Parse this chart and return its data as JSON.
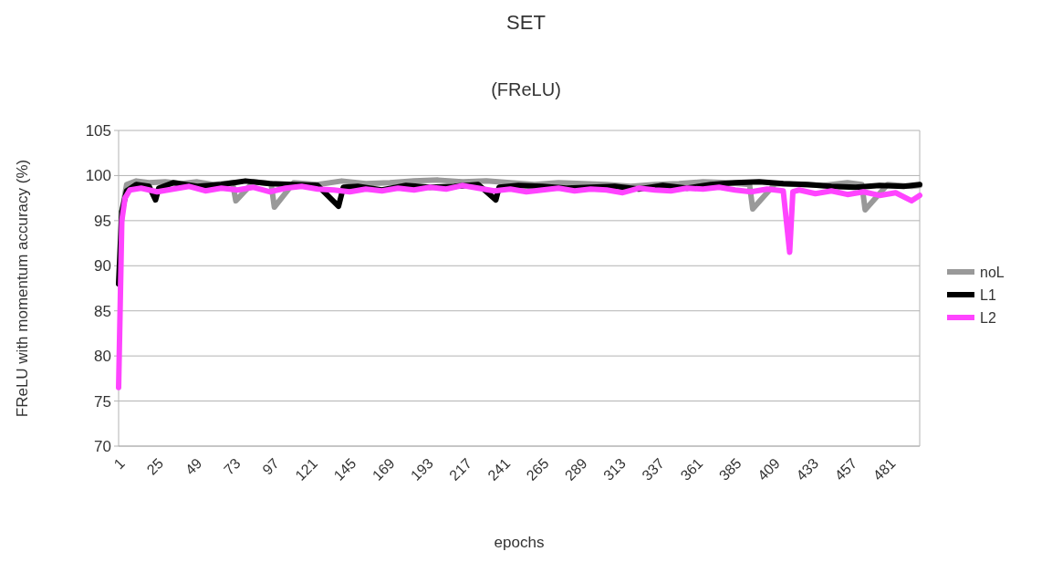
{
  "chart_data": {
    "type": "line",
    "title": "SET",
    "subtitle": "(FReLU)",
    "xlabel": "epochs",
    "ylabel": "FReLU with momentum accuracy (%)",
    "xlim": [
      1,
      500
    ],
    "xticks": [
      1,
      25,
      49,
      73,
      97,
      121,
      145,
      169,
      193,
      217,
      241,
      265,
      289,
      313,
      337,
      361,
      385,
      409,
      433,
      457,
      481
    ],
    "ylim": [
      70,
      105
    ],
    "yticks": [
      70,
      75,
      80,
      85,
      90,
      95,
      100,
      105
    ],
    "grid": "y",
    "legend": "right",
    "line_style": "solid",
    "marker": "none",
    "series": [
      {
        "name": "noL",
        "color": "#999999",
        "x": [
          3,
          6,
          12,
          20,
          30,
          40,
          50,
          60,
          72,
          74,
          85,
          96,
          98,
          110,
          125,
          140,
          155,
          170,
          185,
          200,
          215,
          230,
          245,
          260,
          275,
          290,
          305,
          320,
          335,
          350,
          365,
          380,
          394,
          396,
          410,
          425,
          440,
          455,
          464,
          466,
          480,
          495,
          500
        ],
        "values": [
          96,
          99,
          99.4,
          99.2,
          99.3,
          99.1,
          99.3,
          99,
          99.2,
          97.2,
          99.3,
          99.1,
          96.5,
          99.2,
          99,
          99.4,
          99.1,
          99.2,
          99.4,
          99.5,
          99.3,
          99.4,
          99.2,
          99,
          99.2,
          99.1,
          99,
          98.8,
          99,
          99.1,
          99.3,
          99.2,
          99,
          96.3,
          99.1,
          99,
          98.9,
          99.2,
          99,
          96.2,
          99,
          98.8,
          98.9
        ]
      },
      {
        "name": "L1",
        "color": "#000000",
        "x": [
          1,
          3,
          6,
          12,
          20,
          24,
          26,
          35,
          50,
          65,
          80,
          95,
          110,
          125,
          138,
          141,
          150,
          165,
          180,
          195,
          210,
          225,
          236,
          238,
          250,
          265,
          280,
          295,
          310,
          325,
          340,
          355,
          370,
          385,
          400,
          415,
          430,
          445,
          460,
          475,
          490,
          500
        ],
        "values": [
          88,
          96,
          98.3,
          99,
          98.8,
          97.3,
          98.6,
          99.2,
          98.8,
          99,
          99.4,
          99.1,
          99,
          98.9,
          96.6,
          98.7,
          98.8,
          98.4,
          98.9,
          98.7,
          98.8,
          99,
          97.3,
          98.7,
          98.9,
          98.8,
          98.6,
          98.7,
          98.8,
          98.5,
          98.9,
          98.6,
          99,
          99.2,
          99.3,
          99.1,
          99,
          98.8,
          98.7,
          98.9,
          98.8,
          99
        ]
      },
      {
        "name": "L2",
        "color": "#ff44ff",
        "x": [
          1,
          3,
          5,
          8,
          15,
          25,
          35,
          45,
          55,
          65,
          75,
          85,
          95,
          105,
          115,
          125,
          135,
          145,
          155,
          165,
          175,
          185,
          195,
          205,
          215,
          225,
          235,
          245,
          255,
          265,
          275,
          285,
          295,
          305,
          315,
          325,
          335,
          345,
          355,
          365,
          375,
          385,
          395,
          405,
          415,
          419,
          421,
          425,
          435,
          445,
          455,
          465,
          475,
          485,
          495,
          500
        ],
        "values": [
          76.5,
          95,
          97.5,
          98.4,
          98.6,
          98.2,
          98.5,
          98.8,
          98.3,
          98.6,
          98.4,
          98.7,
          98.2,
          98.6,
          98.8,
          98.5,
          98.4,
          98.2,
          98.5,
          98.3,
          98.6,
          98.4,
          98.7,
          98.5,
          98.9,
          98.6,
          98.3,
          98.5,
          98.2,
          98.4,
          98.6,
          98.3,
          98.5,
          98.4,
          98.1,
          98.6,
          98.4,
          98.3,
          98.6,
          98.5,
          98.7,
          98.4,
          98.2,
          98.5,
          98.3,
          91.5,
          98.2,
          98.4,
          98,
          98.3,
          97.9,
          98.2,
          97.8,
          98.1,
          97.2,
          97.8
        ]
      }
    ]
  }
}
